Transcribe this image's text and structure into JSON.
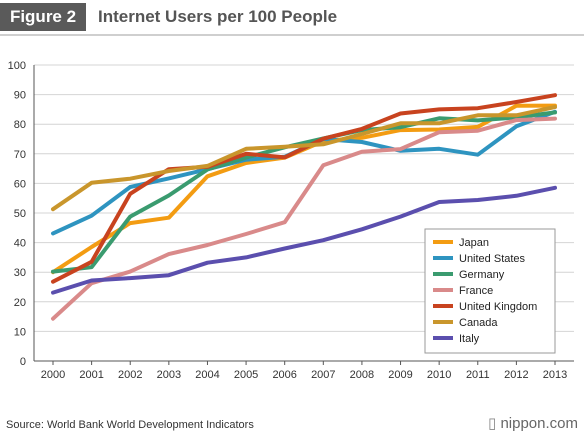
{
  "header": {
    "figure_label": "Figure 2",
    "title": "Internet Users per 100 People"
  },
  "footer": {
    "source": "Source: World Bank World Development Indicators",
    "logo_mark": "▯",
    "logo_text": "nippon.com"
  },
  "chart_data": {
    "type": "line",
    "title": "Internet Users per 100 People",
    "xlabel": "",
    "ylabel": "",
    "x": [
      "2000",
      "2001",
      "2002",
      "2003",
      "2004",
      "2005",
      "2006",
      "2007",
      "2008",
      "2009",
      "2010",
      "2011",
      "2012",
      "2013"
    ],
    "ylim": [
      0,
      100
    ],
    "yticks": [
      0,
      10,
      20,
      30,
      40,
      50,
      60,
      70,
      80,
      90,
      100
    ],
    "grid": true,
    "legend_position": "bottom-right",
    "series": [
      {
        "name": "Japan",
        "color": "#f39c12",
        "values": [
          30,
          38.5,
          46.6,
          48.4,
          62.4,
          66.9,
          68.7,
          74.3,
          75.4,
          78.0,
          78.2,
          79.1,
          86.2,
          86.3
        ]
      },
      {
        "name": "United States",
        "color": "#2e94c0",
        "values": [
          43.1,
          49.1,
          58.8,
          61.7,
          64.8,
          68.0,
          69.0,
          75.0,
          74.0,
          71.0,
          71.7,
          69.7,
          79.3,
          84.2
        ]
      },
      {
        "name": "Germany",
        "color": "#3a9b6f",
        "values": [
          30.2,
          31.7,
          48.8,
          55.9,
          64.7,
          68.7,
          72.2,
          75.2,
          78.0,
          79.0,
          82.0,
          81.3,
          82.3,
          84.0
        ]
      },
      {
        "name": "France",
        "color": "#d98a8a",
        "values": [
          14.3,
          26.3,
          30.2,
          36.1,
          39.2,
          42.9,
          46.9,
          66.1,
          70.7,
          71.6,
          77.3,
          77.8,
          81.4,
          81.9
        ]
      },
      {
        "name": "United Kingdom",
        "color": "#c8431f",
        "values": [
          26.8,
          33.5,
          56.5,
          64.8,
          65.6,
          70.0,
          68.8,
          75.1,
          78.4,
          83.6,
          85.0,
          85.4,
          87.5,
          89.8
        ]
      },
      {
        "name": "Canada",
        "color": "#c9962c",
        "values": [
          51.3,
          60.2,
          61.6,
          64.2,
          65.9,
          71.7,
          72.4,
          73.2,
          76.7,
          80.3,
          80.3,
          83.0,
          83.0,
          85.8
        ]
      },
      {
        "name": "Italy",
        "color": "#5b4fae",
        "values": [
          23.1,
          27.2,
          28.0,
          29.0,
          33.2,
          35.0,
          38.0,
          40.8,
          44.5,
          48.8,
          53.7,
          54.4,
          55.8,
          58.5
        ]
      }
    ]
  }
}
